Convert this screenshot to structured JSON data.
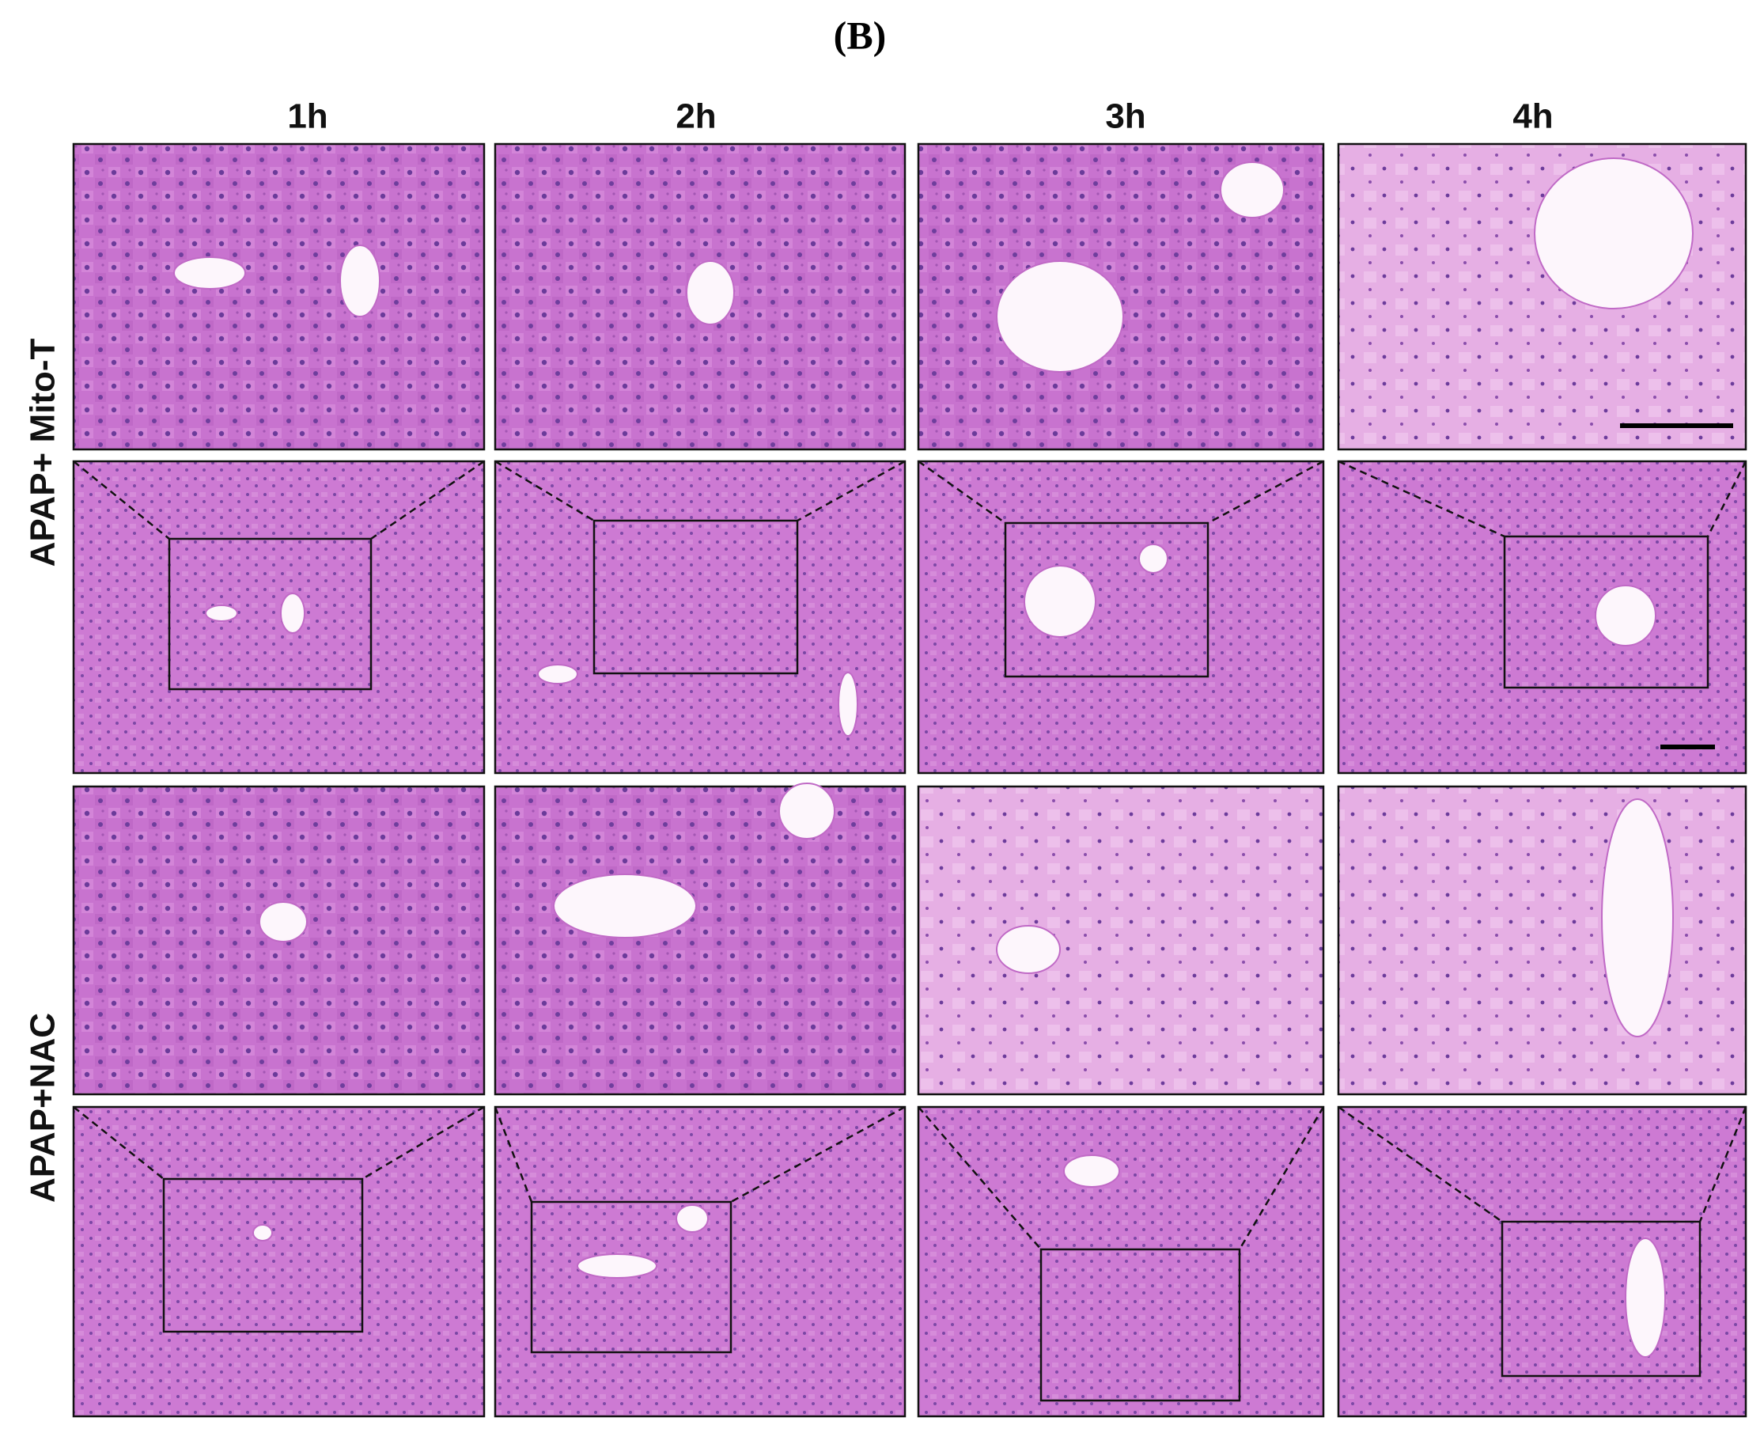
{
  "panel_label": "(B)",
  "columns": [
    "1h",
    "2h",
    "3h",
    "4h"
  ],
  "rows": [
    "APAP+ Mito-T",
    "APAP+NAC"
  ]
}
